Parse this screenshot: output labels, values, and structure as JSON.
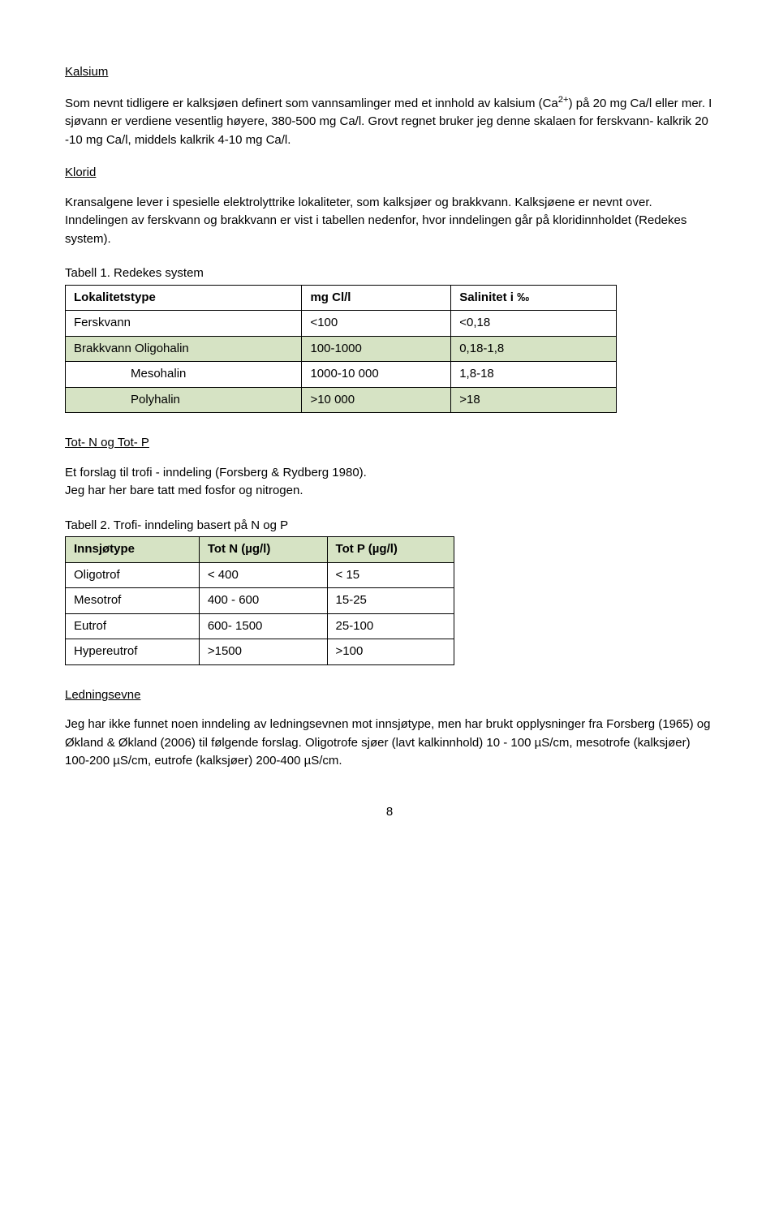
{
  "colors": {
    "shade": "#d6e3c4",
    "text": "#000000",
    "bg": "#ffffff"
  },
  "kalsium": {
    "title": "Kalsium",
    "para": "Som nevnt tidligere er kalksjøen definert som vannsamlinger med et innhold av kalsium (Ca<sup>2+</sup>) på 20 mg Ca/l eller mer. I sjøvann er verdiene vesentlig høyere, 380-500 mg Ca/l. Grovt regnet bruker jeg denne skalaen for ferskvann- kalkrik 20 -10 mg Ca/l, middels kalkrik 4-10 mg Ca/l."
  },
  "klorid": {
    "title": "Klorid",
    "para": "Kransalgene lever i spesielle elektrolyttrike lokaliteter, som kalksjøer og brakkvann. Kalksjøene er nevnt over. Inndelingen av ferskvann og brakkvann er vist i tabellen nedenfor, hvor inndelingen går på kloridinnholdet (Redekes system)."
  },
  "table1": {
    "caption": "Tabell 1. Redekes system",
    "headers": [
      "Lokalitetstype",
      "mg Cl/l",
      "Salinitet i ‰"
    ],
    "rows": [
      {
        "c": [
          "Ferskvann",
          "<100",
          "<0,18"
        ],
        "shaded": false
      },
      {
        "c": [
          "Brakkvann  Oligohalin",
          "100-1000",
          "0,18-1,8"
        ],
        "shaded": true
      },
      {
        "c": [
          "Mesohalin",
          "1000-10 000",
          "1,8-18"
        ],
        "shaded": false,
        "indent": true
      },
      {
        "c": [
          "Polyhalin",
          ">10 000",
          ">18"
        ],
        "shaded": true,
        "indent": true
      }
    ]
  },
  "totnp": {
    "title": "Tot- N og Tot- P",
    "line1": "Et forslag til trofi - inndeling (Forsberg & Rydberg 1980).",
    "line2": "Jeg har her bare tatt med fosfor og nitrogen."
  },
  "table2": {
    "caption": "Tabell 2. Trofi- inndeling basert på N og P",
    "headers": [
      "Innsjøtype",
      "Tot N (µg/l)",
      "Tot P (µg/l)"
    ],
    "rows": [
      {
        "c": [
          "Oligotrof",
          "< 400",
          "< 15"
        ]
      },
      {
        "c": [
          "Mesotrof",
          " 400 - 600",
          "15-25"
        ]
      },
      {
        "c": [
          "Eutrof",
          "600- 1500",
          "25-100"
        ]
      },
      {
        "c": [
          "Hypereutrof",
          ">1500",
          ">100"
        ]
      }
    ]
  },
  "ledning": {
    "title": "Ledningsevne",
    "para": "Jeg har ikke funnet noen inndeling av ledningsevnen mot innsjøtype, men har brukt opplysninger fra Forsberg (1965) og Økland & Økland (2006) til følgende forslag. Oligotrofe sjøer (lavt kalkinnhold) 10 - 100 µS/cm, mesotrofe (kalksjøer) 100-200 µS/cm, eutrofe (kalksjøer) 200-400 µS/cm."
  },
  "page": "8"
}
